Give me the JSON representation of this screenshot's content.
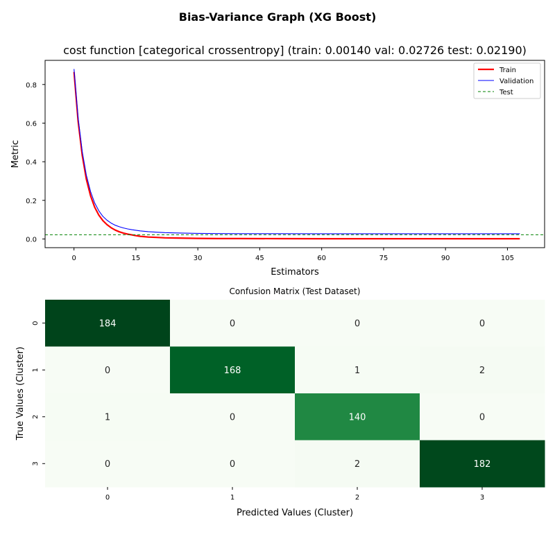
{
  "figure_title": "Bias-Variance Graph (XG Boost)",
  "chart_data": [
    {
      "type": "line",
      "title": "cost function [categorical crossentropy] (train: 0.00140  val: 0.02726  test: 0.02190)",
      "xlabel": "Estimators",
      "ylabel": "Metric",
      "xlim": [
        -7,
        114
      ],
      "ylim": [
        -0.045,
        0.925
      ],
      "x_ticks": [
        0,
        15,
        30,
        45,
        60,
        75,
        90,
        105
      ],
      "y_ticks": [
        0.0,
        0.2,
        0.4,
        0.6,
        0.8
      ],
      "y_tick_labels": [
        "0.0",
        "0.2",
        "0.4",
        "0.6",
        "0.8"
      ],
      "grid": false,
      "legend_position": "top-right",
      "series": [
        {
          "name": "Train",
          "color": "#ff0000",
          "style": "solid-thick",
          "x": [
            0,
            1,
            2,
            3,
            4,
            5,
            6,
            7,
            8,
            9,
            10,
            11,
            12,
            13,
            14,
            15,
            16,
            18,
            20,
            22,
            25,
            30,
            35,
            40,
            50,
            60,
            70,
            80,
            90,
            100,
            108
          ],
          "y": [
            0.865,
            0.61,
            0.432,
            0.309,
            0.224,
            0.165,
            0.124,
            0.095,
            0.074,
            0.058,
            0.046,
            0.037,
            0.03,
            0.025,
            0.021,
            0.017,
            0.014,
            0.01,
            0.008,
            0.006,
            0.005,
            0.003,
            0.002,
            0.002,
            0.0016,
            0.0015,
            0.0014,
            0.0014,
            0.0014,
            0.0014,
            0.0014
          ]
        },
        {
          "name": "Validation",
          "color": "#0000ff",
          "style": "solid-thin",
          "x": [
            0,
            1,
            2,
            3,
            4,
            5,
            6,
            7,
            8,
            9,
            10,
            11,
            12,
            13,
            14,
            15,
            16,
            18,
            20,
            22,
            25,
            30,
            35,
            40,
            50,
            60,
            70,
            80,
            90,
            100,
            108
          ],
          "y": [
            0.88,
            0.628,
            0.452,
            0.33,
            0.246,
            0.187,
            0.146,
            0.117,
            0.097,
            0.082,
            0.071,
            0.063,
            0.057,
            0.052,
            0.048,
            0.045,
            0.042,
            0.038,
            0.035,
            0.033,
            0.031,
            0.029,
            0.028,
            0.0276,
            0.0274,
            0.0273,
            0.0273,
            0.0273,
            0.0273,
            0.0273,
            0.0273
          ]
        },
        {
          "name": "Test",
          "color": "#008000",
          "style": "dashed",
          "hline": 0.0219
        }
      ]
    },
    {
      "type": "heatmap",
      "title": "Confusion Matrix (Test Dataset)",
      "xlabel": "Predicted Values (Cluster)",
      "ylabel": "True Values (Cluster)",
      "x_categories": [
        "0",
        "1",
        "2",
        "3"
      ],
      "y_categories": [
        "0",
        "1",
        "2",
        "3"
      ],
      "values": [
        [
          184,
          0,
          0,
          0
        ],
        [
          0,
          168,
          1,
          2
        ],
        [
          1,
          0,
          140,
          0
        ],
        [
          0,
          0,
          2,
          182
        ]
      ],
      "colormap": "Greens",
      "colorbar": false
    }
  ]
}
